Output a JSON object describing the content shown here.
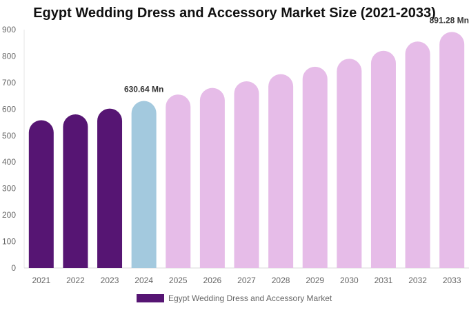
{
  "chart_data": {
    "type": "bar",
    "title": "Egypt Wedding Dress and Accessory Market Size (2021-2033)",
    "categories": [
      "2021",
      "2022",
      "2023",
      "2024",
      "2025",
      "2026",
      "2027",
      "2028",
      "2029",
      "2030",
      "2031",
      "2032",
      "2033"
    ],
    "series": [
      {
        "name": "Egypt Wedding Dress and Accessory Market",
        "values": [
          558,
          580,
          602,
          630.64,
          655,
          680,
          705,
          732,
          760,
          790,
          820,
          855,
          891.28
        ]
      }
    ],
    "ylim": [
      0,
      900
    ],
    "yticks": [
      0,
      100,
      200,
      300,
      400,
      500,
      600,
      700,
      800,
      900
    ],
    "data_labels": [
      {
        "index": 3,
        "text": "630.64 Mn"
      },
      {
        "index": 12,
        "text": "891.28 Mn"
      }
    ],
    "colors": {
      "historical": "#561573",
      "base_year": "#a3c9de",
      "forecast": "#e6bce8"
    },
    "bar_color_groups": [
      "historical",
      "historical",
      "historical",
      "base_year",
      "forecast",
      "forecast",
      "forecast",
      "forecast",
      "forecast",
      "forecast",
      "forecast",
      "forecast",
      "forecast"
    ],
    "grid": false,
    "legend_position": "bottom",
    "legend_color": "#561573"
  }
}
